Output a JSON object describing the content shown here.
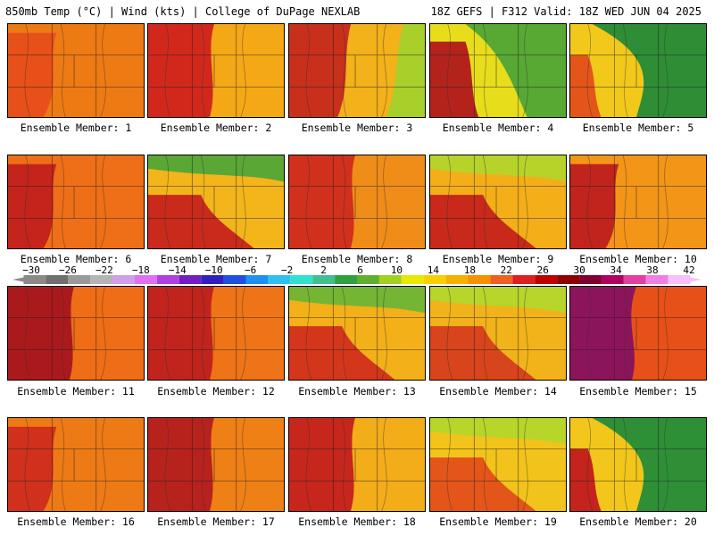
{
  "header": {
    "left": "850mb Temp (°C) | Wind (kts) | College of DuPage NEXLAB",
    "right": "18Z GEFS | F312 Valid: 18Z WED JUN 04 2025"
  },
  "colorbar": {
    "ticks": [
      "−30",
      "−26",
      "−22",
      "−18",
      "−14",
      "−10",
      "−6",
      "−2",
      "2",
      "6",
      "10",
      "14",
      "18",
      "22",
      "26",
      "30",
      "34",
      "38",
      "42"
    ],
    "colors": [
      "#8a8a8a",
      "#707070",
      "#9a9a9a",
      "#b4b4b4",
      "#cfa0e6",
      "#e070f0",
      "#b040e0",
      "#7020c0",
      "#3020c0",
      "#2050e0",
      "#2090f0",
      "#30c0f0",
      "#30e0d0",
      "#40c090",
      "#30a040",
      "#60b030",
      "#a0d020",
      "#e8e800",
      "#f8d000",
      "#f8b000",
      "#f89000",
      "#f06020",
      "#e02020",
      "#c00000",
      "#900000",
      "#800030",
      "#b00060",
      "#e040a0",
      "#f080e0",
      "#f8c0f8"
    ]
  },
  "members": [
    {
      "label": "Ensemble Member: 1",
      "palette": [
        "#f3a01c",
        "#ee7a14",
        "#e8501a"
      ],
      "pattern": "left-hot"
    },
    {
      "label": "Ensemble Member: 2",
      "palette": [
        "#e8d21a",
        "#f5a815",
        "#d2281c"
      ],
      "pattern": "west-hot"
    },
    {
      "label": "Ensemble Member: 3",
      "palette": [
        "#a8cf2a",
        "#f3b11a",
        "#c8301c"
      ],
      "pattern": "east-green"
    },
    {
      "label": "Ensemble Member: 4",
      "palette": [
        "#58a834",
        "#e7dd1b",
        "#b3231c"
      ],
      "pattern": "strong-green"
    },
    {
      "label": "Ensemble Member: 5",
      "palette": [
        "#2f8d36",
        "#f2c91b",
        "#e4551a"
      ],
      "pattern": "green-east"
    },
    {
      "label": "Ensemble Member: 6",
      "palette": [
        "#f5b116",
        "#ee6f17",
        "#c4241b"
      ],
      "pattern": "left-hot"
    },
    {
      "label": "Ensemble Member: 7",
      "palette": [
        "#5aa735",
        "#f3b519",
        "#c92a1c"
      ],
      "pattern": "green-top"
    },
    {
      "label": "Ensemble Member: 8",
      "palette": [
        "#f3d61a",
        "#ef8d18",
        "#d0301c"
      ],
      "pattern": "west-hot"
    },
    {
      "label": "Ensemble Member: 9",
      "palette": [
        "#b7d32a",
        "#f4ae18",
        "#c8291b"
      ],
      "pattern": "green-top"
    },
    {
      "label": "Ensemble Member: 10",
      "palette": [
        "#f5d51a",
        "#f39516",
        "#c0241c"
      ],
      "pattern": "left-hot"
    },
    {
      "label": "Ensemble Member: 11",
      "palette": [
        "#f6b61a",
        "#ef6d16",
        "#aa1a1c"
      ],
      "pattern": "west-hot"
    },
    {
      "label": "Ensemble Member: 12",
      "palette": [
        "#f3c91a",
        "#ee7417",
        "#c0241c"
      ],
      "pattern": "west-hot"
    },
    {
      "label": "Ensemble Member: 13",
      "palette": [
        "#74b533",
        "#f3b019",
        "#d4361c"
      ],
      "pattern": "green-top"
    },
    {
      "label": "Ensemble Member: 14",
      "palette": [
        "#b7d52a",
        "#f2b21a",
        "#d8441c"
      ],
      "pattern": "green-top"
    },
    {
      "label": "Ensemble Member: 15",
      "palette": [
        "#f7d91a",
        "#e8501a",
        "#8c145a"
      ],
      "pattern": "purple-core"
    },
    {
      "label": "Ensemble Member: 16",
      "palette": [
        "#f3c218",
        "#ee7a16",
        "#d0301c"
      ],
      "pattern": "left-hot"
    },
    {
      "label": "Ensemble Member: 17",
      "palette": [
        "#f4cc1a",
        "#ef8016",
        "#b7221c"
      ],
      "pattern": "west-hot"
    },
    {
      "label": "Ensemble Member: 18",
      "palette": [
        "#a6cf2a",
        "#f3ad19",
        "#c6261b"
      ],
      "pattern": "west-hot"
    },
    {
      "label": "Ensemble Member: 19",
      "palette": [
        "#b8d52a",
        "#f2c31a",
        "#e4551a"
      ],
      "pattern": "green-top"
    },
    {
      "label": "Ensemble Member: 20",
      "palette": [
        "#2f8f36",
        "#f2c61a",
        "#c4241b"
      ],
      "pattern": "green-east"
    }
  ]
}
